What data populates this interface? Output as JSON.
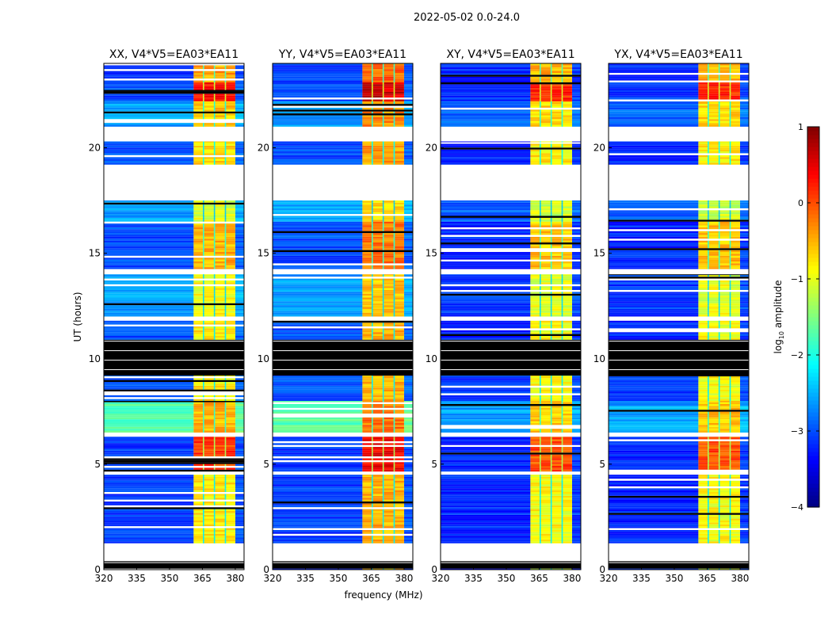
{
  "chart_data": {
    "type": "heatmap",
    "title": "2022-05-02 0.0-24.0",
    "xlabel": "frequency (MHz)",
    "ylabel": "UT (hours)",
    "xlim": [
      320,
      384
    ],
    "ylim": [
      0,
      24
    ],
    "xticks": [
      "320",
      "335",
      "350",
      "365",
      "380"
    ],
    "xtick_values": [
      320,
      335,
      350,
      365,
      380
    ],
    "yticks": [
      "0",
      "5",
      "10",
      "15",
      "20"
    ],
    "ytick_values": [
      0,
      5,
      10,
      15,
      20
    ],
    "panels": [
      {
        "title": "XX, V4*V5=EA03*EA11",
        "pol": "par",
        "band_offset": 0.0
      },
      {
        "title": "YY, V4*V5=EA03*EA11",
        "pol": "par",
        "band_offset": 0.3
      },
      {
        "title": "XY, V4*V5=EA03*EA11",
        "pol": "cross",
        "band_offset": -0.1
      },
      {
        "title": "YX, V4*V5=EA03*EA11",
        "pol": "cross",
        "band_offset": -0.1
      }
    ],
    "band_mhz": [
      361,
      380
    ],
    "band_edges_mhz": [
      365.5,
      370.5,
      375.5
    ],
    "segments_ut": [
      {
        "start": 0.0,
        "end": 0.05,
        "kind": "data",
        "bg": [
          -3.2,
          -3.3
        ],
        "band": -0.9
      },
      {
        "start": 0.05,
        "end": 0.4,
        "kind": "flagged"
      },
      {
        "start": 0.4,
        "end": 1.25,
        "kind": "blank"
      },
      {
        "start": 1.25,
        "end": 4.5,
        "kind": "data",
        "bg": [
          -3.1,
          -3.2
        ],
        "band": -0.8
      },
      {
        "start": 4.5,
        "end": 4.65,
        "kind": "blank"
      },
      {
        "start": 4.65,
        "end": 6.3,
        "kind": "data",
        "bg": [
          -3.1,
          -3.2
        ],
        "band": 0.1
      },
      {
        "start": 6.3,
        "end": 6.5,
        "kind": "blank"
      },
      {
        "start": 6.5,
        "end": 8.0,
        "kind": "data",
        "bg": [
          -1.7,
          -2.6
        ],
        "band": -0.5
      },
      {
        "start": 8.0,
        "end": 9.2,
        "kind": "data",
        "bg": [
          -3.0,
          -3.1
        ],
        "band": -0.8
      },
      {
        "start": 9.2,
        "end": 10.9,
        "kind": "flagged"
      },
      {
        "start": 10.9,
        "end": 11.8,
        "kind": "data",
        "bg": [
          -3.0,
          -3.2
        ],
        "band": -0.8
      },
      {
        "start": 11.8,
        "end": 12.0,
        "kind": "blank"
      },
      {
        "start": 12.0,
        "end": 14.0,
        "kind": "data",
        "bg": [
          -2.6,
          -3.1
        ],
        "band": -0.9
      },
      {
        "start": 14.0,
        "end": 14.25,
        "kind": "blank"
      },
      {
        "start": 14.25,
        "end": 16.5,
        "kind": "data",
        "bg": [
          -3.0,
          -3.2
        ],
        "band": -0.5
      },
      {
        "start": 16.5,
        "end": 17.5,
        "kind": "data",
        "bg": [
          -2.6,
          -2.9
        ],
        "band": -1.0
      },
      {
        "start": 17.5,
        "end": 19.2,
        "kind": "blank"
      },
      {
        "start": 19.2,
        "end": 20.3,
        "kind": "data",
        "bg": [
          -3.0,
          -3.2
        ],
        "band": -0.7
      },
      {
        "start": 20.3,
        "end": 21.0,
        "kind": "blank"
      },
      {
        "start": 21.0,
        "end": 22.2,
        "kind": "data",
        "bg": [
          -2.6,
          -2.9
        ],
        "band": -0.6
      },
      {
        "start": 22.2,
        "end": 23.1,
        "kind": "data",
        "bg": [
          -3.0,
          -3.1
        ],
        "band": 0.3
      },
      {
        "start": 23.1,
        "end": 24.0,
        "kind": "data",
        "bg": [
          -3.1,
          -3.2
        ],
        "band": -0.4
      }
    ],
    "colorbar": {
      "label": "log10 amplitude",
      "label_main": "log",
      "label_sub": "10",
      "label_rest": " amplitude",
      "range": [
        -4,
        1
      ],
      "ticks": [
        "1",
        "0",
        "−1",
        "−2",
        "−3",
        "−4"
      ],
      "tick_values": [
        1,
        0,
        -1,
        -2,
        -3,
        -4
      ],
      "colormap": "jet"
    }
  }
}
